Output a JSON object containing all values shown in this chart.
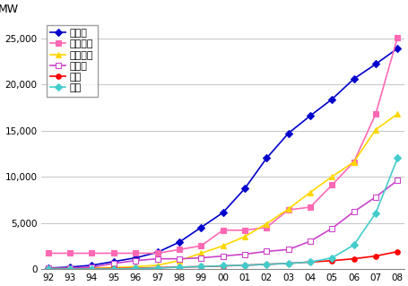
{
  "years": [
    "92",
    "93",
    "94",
    "95",
    "96",
    "97",
    "98",
    "99",
    "00",
    "01",
    "02",
    "03",
    "04",
    "05",
    "06",
    "07",
    "08"
  ],
  "series": {
    "ドイツ": [
      100,
      200,
      400,
      800,
      1200,
      1800,
      2900,
      4500,
      6100,
      8700,
      12000,
      14700,
      16600,
      18400,
      20600,
      22200,
      23900
    ],
    "アメリカ": [
      1700,
      1700,
      1700,
      1700,
      1700,
      1700,
      2100,
      2500,
      4200,
      4200,
      4500,
      6400,
      6700,
      9100,
      11600,
      16800,
      25100
    ],
    "スペイン": [
      50,
      50,
      100,
      150,
      250,
      400,
      900,
      1700,
      2500,
      3500,
      4900,
      6500,
      8300,
      10000,
      11600,
      15100,
      16800
    ],
    "インド": [
      50,
      100,
      200,
      600,
      900,
      1100,
      1100,
      1200,
      1400,
      1600,
      1900,
      2100,
      3000,
      4400,
      6200,
      7800,
      9600
    ],
    "日本": [
      10,
      20,
      30,
      50,
      80,
      140,
      200,
      250,
      320,
      400,
      500,
      600,
      750,
      900,
      1100,
      1400,
      1880
    ],
    "中国": [
      0,
      0,
      0,
      0,
      50,
      100,
      200,
      250,
      350,
      400,
      500,
      600,
      750,
      1200,
      2600,
      6050,
      12000
    ]
  },
  "colors": {
    "ドイツ": "#0000CC",
    "アメリカ": "#FF69B4",
    "スペイン": "#FFD700",
    "インド": "#CC44CC",
    "日本": "#FF0000",
    "中国": "#44CCCC"
  },
  "markers": {
    "ドイツ": "D",
    "アメリカ": "s",
    "スペイン": "^",
    "インド": "s",
    "日本": "o",
    "中国": "D"
  },
  "marker_fill": {
    "ドイツ": true,
    "アメリカ": true,
    "スペイン": true,
    "インド": false,
    "日本": true,
    "中国": true
  },
  "ylabel": "MW",
  "ylim": [
    0,
    27000
  ],
  "yticks": [
    0,
    5000,
    10000,
    15000,
    20000,
    25000
  ],
  "background_color": "#FFFFFF",
  "grid_color": "#BBBBBB"
}
